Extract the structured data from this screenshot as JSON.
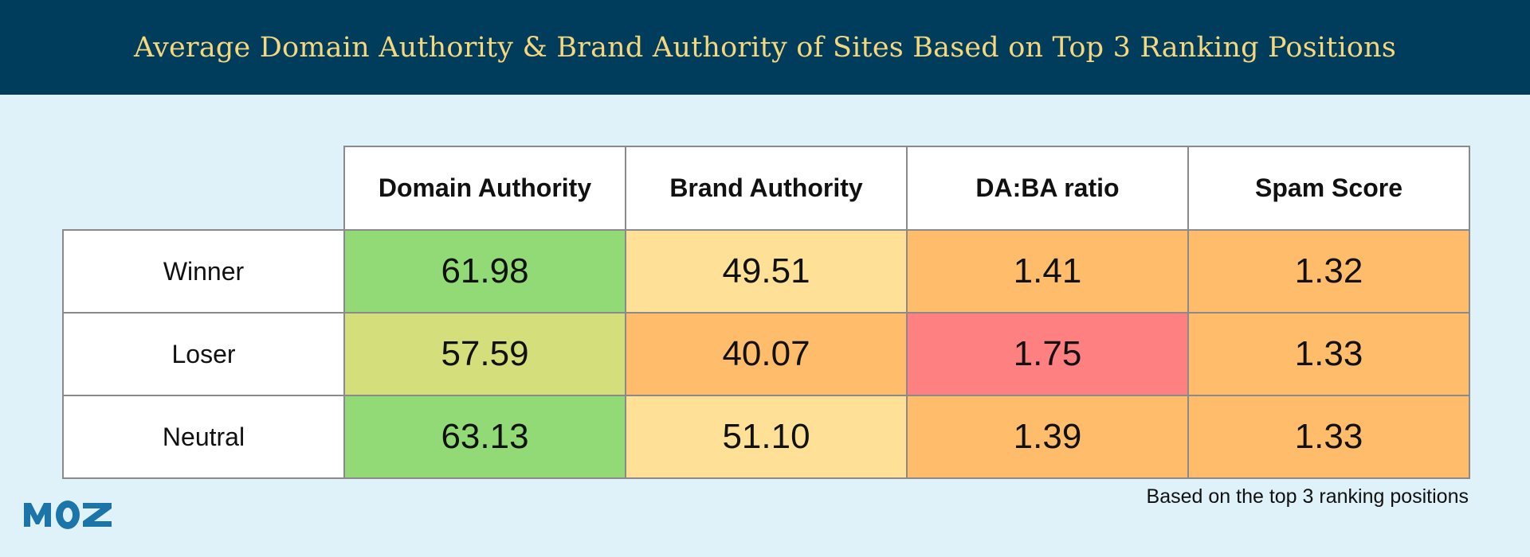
{
  "title": "Average Domain Authority & Brand Authority of Sites Based on Top 3 Ranking Positions",
  "colors": {
    "header_bg": "#003d5c",
    "title": "#f6d77c",
    "background": "#e0f2f9",
    "green": "#91da76",
    "yellow_green": "#d4de7a",
    "light_yellow": "#fee196",
    "orange": "#ffbd6b",
    "red": "#ff8080",
    "logo": "#1b75a8"
  },
  "table": {
    "columns": [
      "Domain Authority",
      "Brand Authority",
      "DA:BA ratio",
      "Spam Score"
    ],
    "rows": [
      {
        "label": "Winner",
        "values": [
          "61.98",
          "49.51",
          "1.41",
          "1.32"
        ],
        "fills": [
          "#91da76",
          "#fee196",
          "#ffbd6b",
          "#ffbd6b"
        ]
      },
      {
        "label": "Loser",
        "values": [
          "57.59",
          "40.07",
          "1.75",
          "1.33"
        ],
        "fills": [
          "#d4de7a",
          "#ffbd6b",
          "#ff8080",
          "#ffbd6b"
        ]
      },
      {
        "label": "Neutral",
        "values": [
          "63.13",
          "51.10",
          "1.39",
          "1.33"
        ],
        "fills": [
          "#91da76",
          "#fee196",
          "#ffbd6b",
          "#ffbd6b"
        ]
      }
    ]
  },
  "footnote": "Based on the top 3 ranking positions",
  "logo": {
    "text": "MOZ",
    "icon": "moz-logo"
  }
}
